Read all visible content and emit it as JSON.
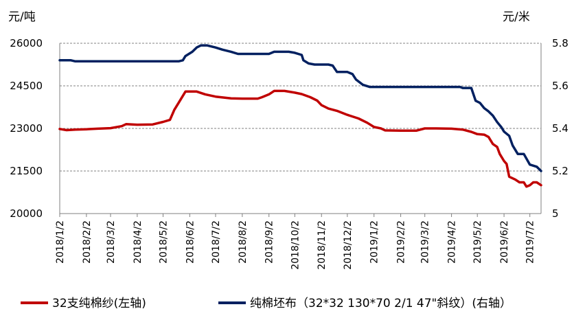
{
  "chart_data": {
    "type": "line",
    "y_left": {
      "unit": "元/吨",
      "ylim": [
        20000,
        26000
      ],
      "ticks": [
        "20000",
        "21500",
        "23000",
        "24500",
        "26000"
      ]
    },
    "y_right": {
      "unit": "元/米",
      "ylim": [
        5.0,
        5.8
      ],
      "ticks": [
        "5",
        "5.2",
        "5.4",
        "5.6",
        "5.8"
      ]
    },
    "x_ticks": [
      "2018/1/2",
      "2018/2/2",
      "2018/3/2",
      "2018/4/2",
      "2018/5/2",
      "2018/6/2",
      "2018/7/2",
      "2018/8/2",
      "2018/9/2",
      "2018/10/2",
      "2018/11/2",
      "2018/12/2",
      "2019/1/2",
      "2019/2/2",
      "2019/3/2",
      "2019/4/2",
      "2019/5/2",
      "2019/6/2",
      "2019/7/2"
    ],
    "x_range": [
      "2018/1/2",
      "2019/7/15"
    ],
    "grid": "horizontal dashed",
    "legend_position": "bottom",
    "series": [
      {
        "name": "32支纯棉纱(左轴)",
        "axis": "left",
        "color": "#C00000",
        "points": [
          [
            "2018/1/2",
            22980
          ],
          [
            "2018/1/10",
            22940
          ],
          [
            "2018/1/20",
            22960
          ],
          [
            "2018/2/2",
            22970
          ],
          [
            "2018/2/15",
            22990
          ],
          [
            "2018/3/2",
            23010
          ],
          [
            "2018/3/15",
            23080
          ],
          [
            "2018/3/20",
            23150
          ],
          [
            "2018/4/2",
            23130
          ],
          [
            "2018/4/20",
            23140
          ],
          [
            "2018/5/2",
            23230
          ],
          [
            "2018/5/10",
            23300
          ],
          [
            "2018/5/15",
            23650
          ],
          [
            "2018/5/20",
            23900
          ],
          [
            "2018/5/28",
            24300
          ],
          [
            "2018/6/10",
            24300
          ],
          [
            "2018/6/20",
            24200
          ],
          [
            "2018/7/2",
            24120
          ],
          [
            "2018/7/20",
            24060
          ],
          [
            "2018/8/2",
            24050
          ],
          [
            "2018/8/20",
            24050
          ],
          [
            "2018/8/25",
            24100
          ],
          [
            "2018/9/2",
            24200
          ],
          [
            "2018/9/8",
            24320
          ],
          [
            "2018/9/20",
            24320
          ],
          [
            "2018/10/2",
            24260
          ],
          [
            "2018/10/10",
            24210
          ],
          [
            "2018/10/20",
            24100
          ],
          [
            "2018/10/28",
            23980
          ],
          [
            "2018/11/2",
            23820
          ],
          [
            "2018/11/10",
            23700
          ],
          [
            "2018/11/20",
            23620
          ],
          [
            "2018/12/2",
            23480
          ],
          [
            "2018/12/15",
            23350
          ],
          [
            "2018/12/25",
            23200
          ],
          [
            "2019/1/2",
            23050
          ],
          [
            "2019/1/10",
            23000
          ],
          [
            "2019/1/15",
            22930
          ],
          [
            "2019/2/2",
            22920
          ],
          [
            "2019/2/20",
            22920
          ],
          [
            "2019/3/2",
            23000
          ],
          [
            "2019/3/15",
            23000
          ],
          [
            "2019/4/2",
            22990
          ],
          [
            "2019/4/15",
            22960
          ],
          [
            "2019/4/25",
            22880
          ],
          [
            "2019/5/2",
            22800
          ],
          [
            "2019/5/10",
            22780
          ],
          [
            "2019/5/15",
            22700
          ],
          [
            "2019/5/20",
            22450
          ],
          [
            "2019/5/25",
            22350
          ],
          [
            "2019/5/28",
            22100
          ],
          [
            "2019/6/2",
            21850
          ],
          [
            "2019/6/5",
            21750
          ],
          [
            "2019/6/8",
            21300
          ],
          [
            "2019/6/15",
            21200
          ],
          [
            "2019/6/20",
            21100
          ],
          [
            "2019/6/25",
            21100
          ],
          [
            "2019/6/28",
            20950
          ],
          [
            "2019/7/2",
            21000
          ],
          [
            "2019/7/6",
            21100
          ],
          [
            "2019/7/10",
            21100
          ],
          [
            "2019/7/15",
            21000
          ]
        ]
      },
      {
        "name": "纯棉坯布（32*32 130*70 2/1 47\"斜纹）(右轴）",
        "axis": "right",
        "color": "#002060",
        "points": [
          [
            "2018/1/2",
            5.72
          ],
          [
            "2018/1/15",
            5.72
          ],
          [
            "2018/1/20",
            5.715
          ],
          [
            "2018/2/2",
            5.715
          ],
          [
            "2018/3/2",
            5.715
          ],
          [
            "2018/4/2",
            5.715
          ],
          [
            "2018/5/2",
            5.715
          ],
          [
            "2018/5/20",
            5.715
          ],
          [
            "2018/5/25",
            5.72
          ],
          [
            "2018/5/28",
            5.74
          ],
          [
            "2018/6/5",
            5.76
          ],
          [
            "2018/6/10",
            5.78
          ],
          [
            "2018/6/15",
            5.79
          ],
          [
            "2018/6/22",
            5.79
          ],
          [
            "2018/7/2",
            5.78
          ],
          [
            "2018/7/10",
            5.77
          ],
          [
            "2018/7/20",
            5.76
          ],
          [
            "2018/7/28",
            5.75
          ],
          [
            "2018/8/2",
            5.75
          ],
          [
            "2018/8/25",
            5.75
          ],
          [
            "2018/9/2",
            5.75
          ],
          [
            "2018/9/8",
            5.76
          ],
          [
            "2018/9/25",
            5.76
          ],
          [
            "2018/10/2",
            5.755
          ],
          [
            "2018/10/10",
            5.745
          ],
          [
            "2018/10/12",
            5.72
          ],
          [
            "2018/10/18",
            5.705
          ],
          [
            "2018/10/25",
            5.7
          ],
          [
            "2018/11/10",
            5.7
          ],
          [
            "2018/11/15",
            5.695
          ],
          [
            "2018/11/20",
            5.665
          ],
          [
            "2018/12/2",
            5.665
          ],
          [
            "2018/12/8",
            5.655
          ],
          [
            "2018/12/12",
            5.63
          ],
          [
            "2018/12/20",
            5.605
          ],
          [
            "2018/12/28",
            5.595
          ],
          [
            "2019/1/10",
            5.595
          ],
          [
            "2019/2/2",
            5.595
          ],
          [
            "2019/3/2",
            5.595
          ],
          [
            "2019/4/2",
            5.595
          ],
          [
            "2019/4/12",
            5.595
          ],
          [
            "2019/4/15",
            5.59
          ],
          [
            "2019/4/25",
            5.59
          ],
          [
            "2019/4/30",
            5.53
          ],
          [
            "2019/5/5",
            5.52
          ],
          [
            "2019/5/10",
            5.495
          ],
          [
            "2019/5/15",
            5.48
          ],
          [
            "2019/5/20",
            5.46
          ],
          [
            "2019/5/25",
            5.43
          ],
          [
            "2019/5/30",
            5.405
          ],
          [
            "2019/6/2",
            5.385
          ],
          [
            "2019/6/8",
            5.365
          ],
          [
            "2019/6/12",
            5.32
          ],
          [
            "2019/6/18",
            5.28
          ],
          [
            "2019/6/25",
            5.28
          ],
          [
            "2019/7/2",
            5.23
          ],
          [
            "2019/7/10",
            5.22
          ],
          [
            "2019/7/15",
            5.2
          ]
        ]
      }
    ]
  },
  "legend": {
    "items": [
      {
        "label": "32支纯棉纱(左轴)",
        "color": "#C00000"
      },
      {
        "label": "纯棉坯布（32*32 130*70 2/1 47\"斜纹）(右轴）",
        "color": "#002060"
      }
    ]
  }
}
